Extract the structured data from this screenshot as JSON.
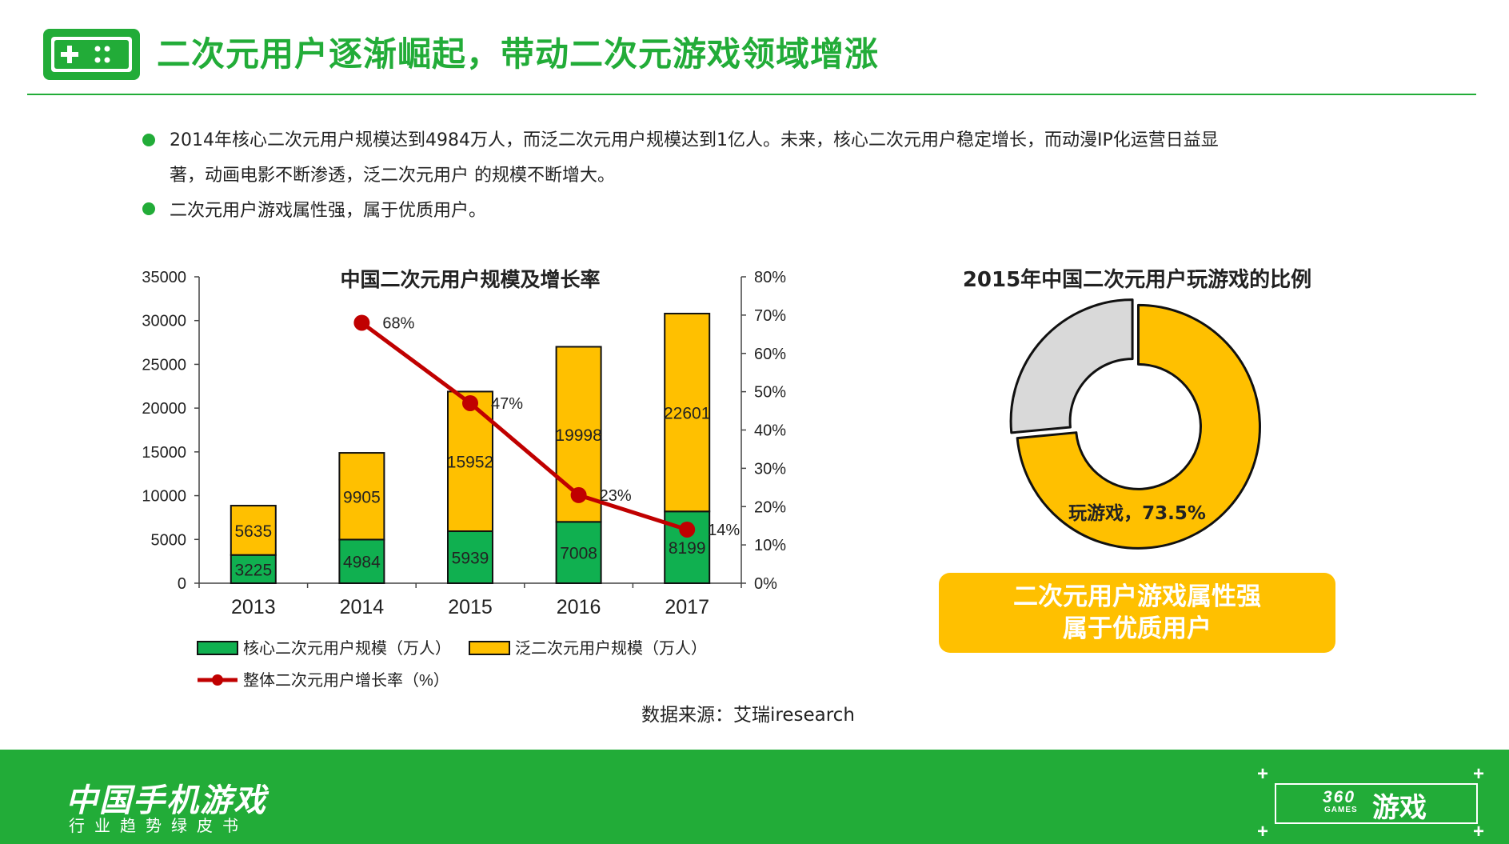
{
  "header": {
    "title": "二次元用户逐渐崛起，带动二次元游戏领域增涨"
  },
  "bullets": [
    {
      "line1": "2014年核心二次元用户规模达到4984万人，而泛二次元用户规模达到1亿人。未来，核心二次元用户稳定增长，而动漫IP化运营日益显",
      "line2": "著，动画电影不断渗透，泛二次元用户 的规模不断增大。"
    },
    {
      "line1": "二次元用户游戏属性强，属于优质用户。"
    }
  ],
  "source": "数据来源：艾瑞iresearch",
  "highlight": {
    "line1": "二次元用户游戏属性强",
    "line2": "属于优质用户"
  },
  "footer": {
    "title": "中国手机游戏",
    "subtitle": "行业趋势绿皮书",
    "logo_number": "360",
    "logo_games": "GAMES",
    "logo_text": "游戏"
  },
  "colors": {
    "brand_green": "#22AC38",
    "bar_green": "#10B050",
    "bar_yellow": "#FFC000",
    "line_red": "#C00000",
    "donut_gray": "#D9D9D9"
  },
  "chart_data": [
    {
      "type": "bar",
      "stacked": true,
      "title": "中国二次元用户规模及增长率",
      "categories": [
        "2013",
        "2014",
        "2015",
        "2016",
        "2017"
      ],
      "series": [
        {
          "name": "核心二次元用户规模（万人）",
          "kind": "bar",
          "values": [
            3225,
            4984,
            5939,
            7008,
            8199
          ],
          "color": "#10B050"
        },
        {
          "name": "泛二次元用户规模（万人）",
          "kind": "bar",
          "values": [
            5635,
            9905,
            15952,
            19998,
            22601
          ],
          "color": "#FFC000"
        },
        {
          "name": "整体二次元用户增长率（%）",
          "kind": "line",
          "axis": "right",
          "values": [
            null,
            68,
            47,
            23,
            14
          ],
          "color": "#C00000"
        }
      ],
      "y_left": {
        "range": [
          0,
          35000
        ],
        "ticks": [
          "0",
          "5000",
          "10000",
          "15000",
          "20000",
          "25000",
          "30000",
          "35000"
        ]
      },
      "y_right": {
        "range": [
          0,
          80
        ],
        "ticks": [
          "0%",
          "10%",
          "20%",
          "30%",
          "40%",
          "50%",
          "60%",
          "70%",
          "80%"
        ]
      },
      "line_labels": [
        "68%",
        "47%",
        "23%",
        "14%"
      ],
      "legend_position": "bottom",
      "grid": false
    },
    {
      "type": "pie",
      "donut": true,
      "title": "2015年中国二次元用户玩游戏的比例",
      "slices": [
        {
          "label": "玩游戏，73.5%",
          "value": 73.5,
          "color": "#FFC000"
        },
        {
          "label": "",
          "value": 26.5,
          "color": "#D9D9D9"
        }
      ]
    }
  ]
}
